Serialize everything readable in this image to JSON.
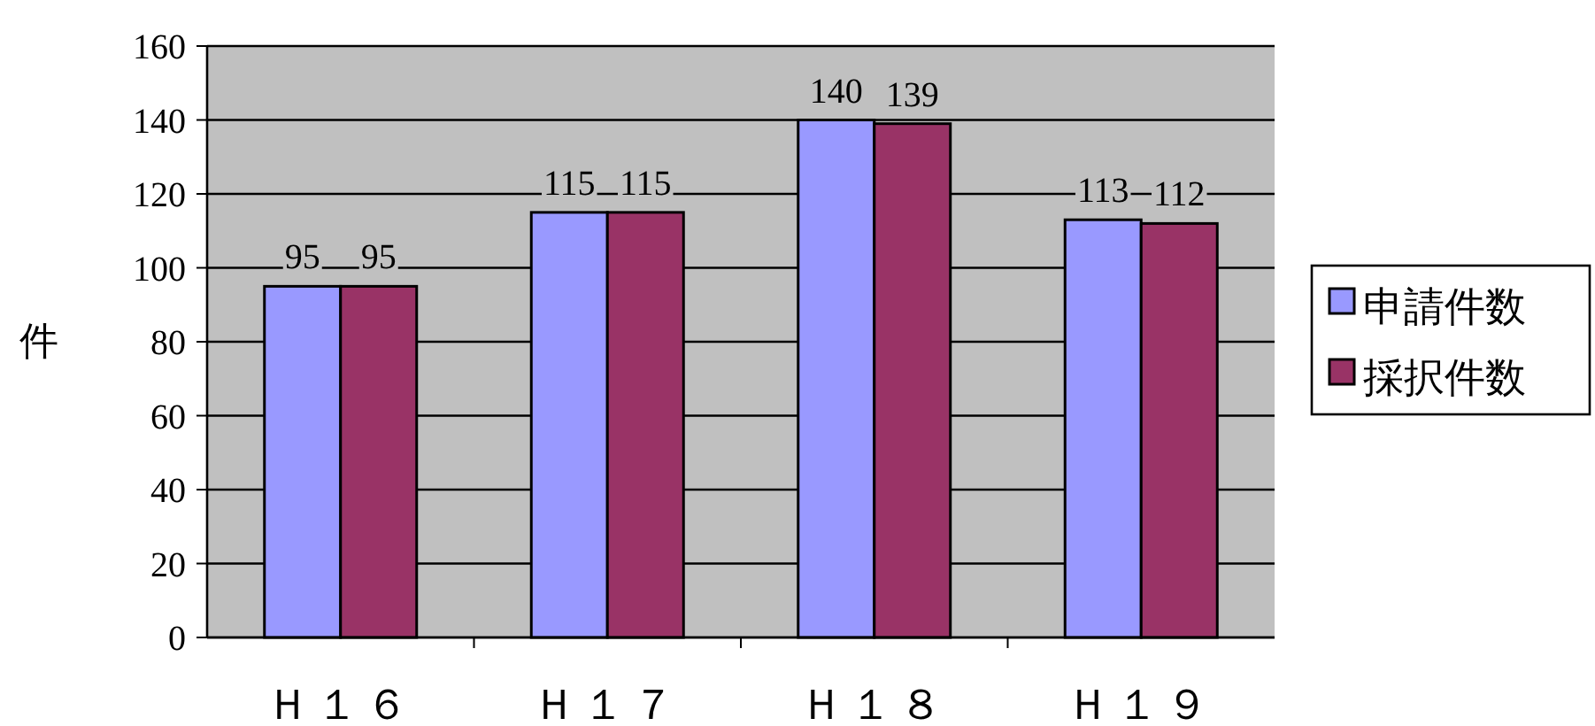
{
  "chart_data": {
    "type": "bar",
    "categories": [
      "Ｈ１６",
      "Ｈ１７",
      "Ｈ１８",
      "Ｈ１９"
    ],
    "series": [
      {
        "name": "申請件数",
        "color": "#9999ff",
        "values": [
          95,
          115,
          140,
          113
        ]
      },
      {
        "name": "採択件数",
        "color": "#993366",
        "values": [
          95,
          115,
          139,
          112
        ]
      }
    ],
    "ylabel": "件",
    "ylim": [
      0,
      160
    ],
    "yticks": [
      0,
      20,
      40,
      60,
      80,
      100,
      120,
      140,
      160
    ],
    "grid": "y",
    "legend": "right",
    "data_labels": true
  }
}
